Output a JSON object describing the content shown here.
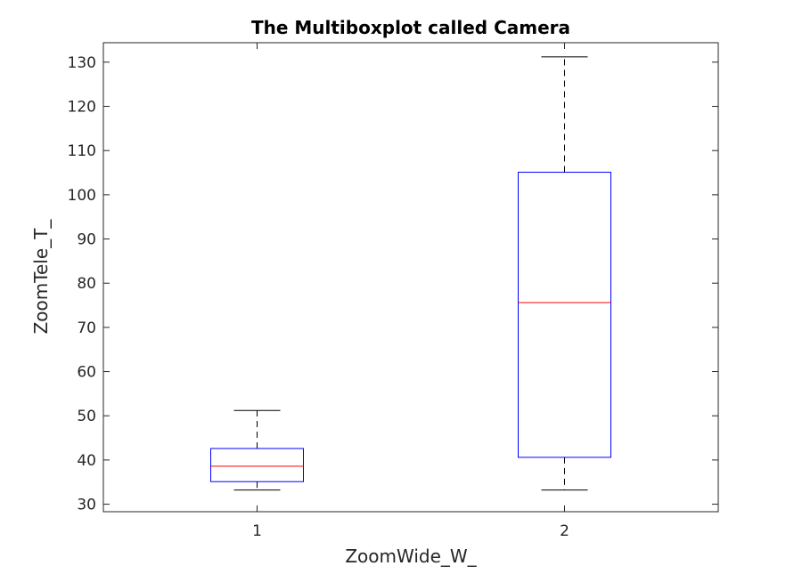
{
  "chart_data": {
    "type": "box",
    "title": "The Multiboxplot called Camera",
    "xlabel": "ZoomWide_W_",
    "ylabel": "ZoomTele_T_",
    "categories": [
      "1",
      "2"
    ],
    "boxes": [
      {
        "category": "1",
        "whisker_low": 33.2,
        "q1": 35.1,
        "median": 38.6,
        "q3": 42.6,
        "whisker_high": 51.2
      },
      {
        "category": "2",
        "whisker_low": 33.2,
        "q1": 40.6,
        "median": 75.6,
        "q3": 105.1,
        "whisker_high": 131.2
      }
    ],
    "xlim": [
      0.5,
      2.5
    ],
    "ylim": [
      28.3,
      134.4
    ],
    "yticks": [
      30,
      40,
      50,
      60,
      70,
      80,
      90,
      100,
      110,
      120,
      130
    ],
    "grid": false,
    "colors": {
      "box": "#0000ff",
      "median": "#ff0000",
      "whisker": "#000000",
      "axes": "#262626"
    }
  }
}
